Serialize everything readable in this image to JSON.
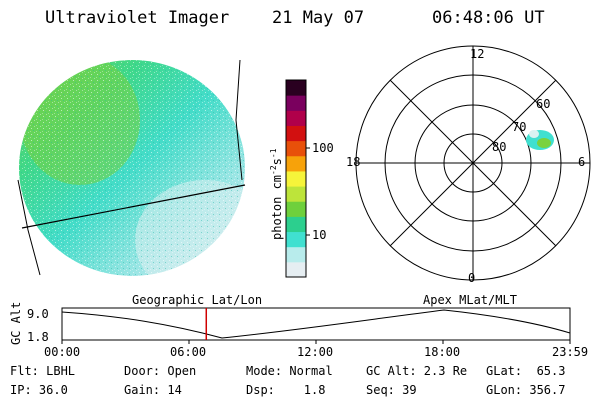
{
  "header": {
    "title": "Ultraviolet Imager",
    "date": "21 May 07",
    "time": "06:48:06 UT"
  },
  "colorbar": {
    "unit_label": "photon cm-2s-1",
    "ticks": [
      "100",
      "10"
    ],
    "colors": [
      "#e6eef2",
      "#b8ecec",
      "#40e0d0",
      "#2ccf8e",
      "#6ed03c",
      "#bde43a",
      "#f6f43a",
      "#f7a20a",
      "#e8500a",
      "#d21010",
      "#b0004a",
      "#7a005e",
      "#2a0020"
    ]
  },
  "polar": {
    "mlt_labels": [
      "12",
      "18",
      "6",
      "0"
    ],
    "mlat_labels": [
      "60",
      "70",
      "80"
    ]
  },
  "timeline": {
    "left_label": "Geographic Lat/Lon",
    "right_label": "Apex MLat/MLT",
    "y_axis_label": "GC Alt",
    "y_ticks": [
      "9.0",
      "1.8"
    ],
    "x_ticks": [
      "00:00",
      "06:00",
      "12:00",
      "18:00",
      "23:59"
    ],
    "current_time_fraction": 0.284
  },
  "footer": {
    "flt": "Flt: LBHL",
    "ip": "IP: 36.0",
    "door": "Door: Open",
    "gain": "Gain: 14",
    "mode": "Mode: Normal",
    "dsp": "Dsp:    1.8",
    "gcalt": "GC Alt: 2.3 Re",
    "seq": "Seq: 39",
    "glat": "GLat:  65.3",
    "glon": "GLon: 356.7"
  }
}
